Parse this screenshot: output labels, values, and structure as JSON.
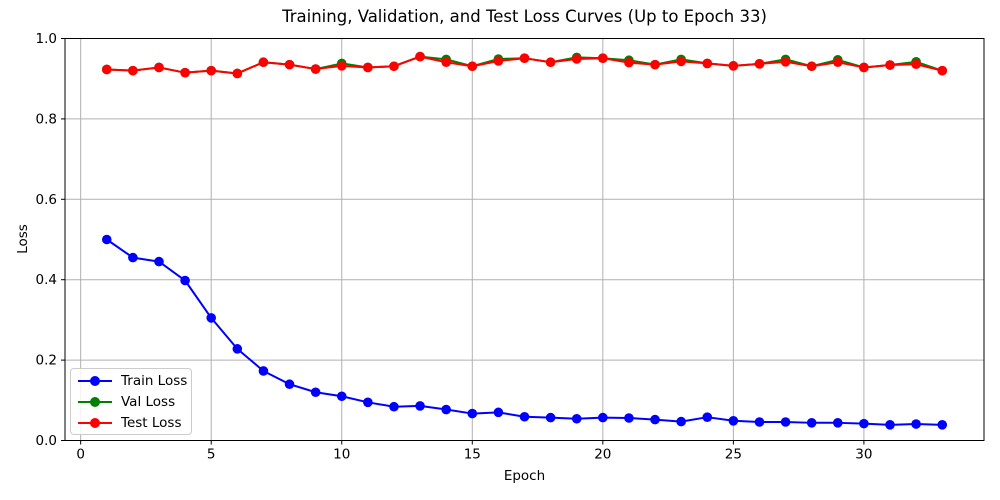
{
  "chart_data": {
    "type": "line",
    "title": "Training, Validation, and Test Loss Curves (Up to Epoch 33)",
    "xlabel": "Epoch",
    "ylabel": "Loss",
    "x": [
      1,
      2,
      3,
      4,
      5,
      6,
      7,
      8,
      9,
      10,
      11,
      12,
      13,
      14,
      15,
      16,
      17,
      18,
      19,
      20,
      21,
      22,
      23,
      24,
      25,
      26,
      27,
      28,
      29,
      30,
      31,
      32,
      33
    ],
    "series": [
      {
        "name": "Train Loss",
        "color": "#0000ff",
        "values": [
          0.5,
          0.455,
          0.445,
          0.398,
          0.305,
          0.228,
          0.173,
          0.14,
          0.12,
          0.11,
          0.095,
          0.084,
          0.086,
          0.077,
          0.067,
          0.07,
          0.059,
          0.057,
          0.054,
          0.057,
          0.056,
          0.052,
          0.047,
          0.058,
          0.049,
          0.046,
          0.046,
          0.044,
          0.044,
          0.042,
          0.039,
          0.041,
          0.039
        ]
      },
      {
        "name": "Val Loss",
        "color": "#008000",
        "values": [
          0.923,
          0.92,
          0.928,
          0.915,
          0.92,
          0.913,
          0.941,
          0.935,
          0.924,
          0.938,
          0.928,
          0.931,
          0.955,
          0.948,
          0.931,
          0.949,
          0.951,
          0.941,
          0.953,
          0.951,
          0.946,
          0.935,
          0.948,
          0.938,
          0.932,
          0.937,
          0.948,
          0.931,
          0.947,
          0.928,
          0.934,
          0.942,
          0.92
        ]
      },
      {
        "name": "Test Loss",
        "color": "#ff0000",
        "values": [
          0.923,
          0.92,
          0.928,
          0.915,
          0.92,
          0.913,
          0.941,
          0.935,
          0.924,
          0.932,
          0.928,
          0.931,
          0.955,
          0.941,
          0.931,
          0.944,
          0.951,
          0.941,
          0.949,
          0.951,
          0.94,
          0.935,
          0.943,
          0.938,
          0.932,
          0.937,
          0.942,
          0.931,
          0.941,
          0.928,
          0.934,
          0.936,
          0.92
        ]
      }
    ],
    "xlim": [
      -0.6,
      34.6
    ],
    "ylim": [
      0.0,
      1.0
    ],
    "xticks": [
      0,
      5,
      10,
      15,
      20,
      25,
      30
    ],
    "yticks": [
      0.0,
      0.2,
      0.4,
      0.6,
      0.8,
      1.0
    ],
    "grid": true,
    "grid_color": "#b0b0b0",
    "axis_color": "#000000",
    "background": "#ffffff",
    "legend_position": "lower left"
  }
}
